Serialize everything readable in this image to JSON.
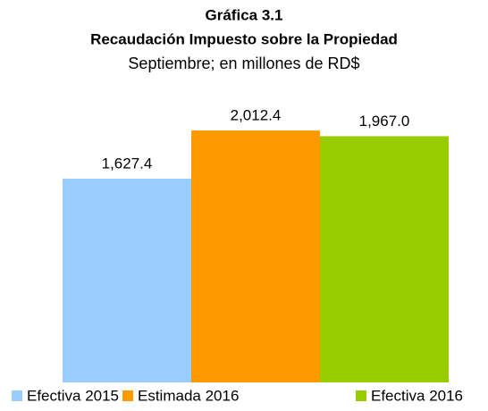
{
  "chart_data": {
    "type": "bar",
    "title": "Gráfica 3.1",
    "subtitle": "Recaudación Impuesto sobre la Propiedad",
    "unit_label": "Septiembre; en millones de RD$",
    "categories": [
      null
    ],
    "series": [
      {
        "name": "Efectiva 2015",
        "color": "#99ccff",
        "values": [
          1627.4
        ],
        "value_labels": [
          "1,627.4"
        ]
      },
      {
        "name": "Estimada 2016",
        "color": "#ff9900",
        "values": [
          2012.4
        ],
        "value_labels": [
          "2,012.4"
        ]
      },
      {
        "name": "Efectiva 2016",
        "color": "#99cc00",
        "values": [
          1967.0
        ],
        "value_labels": [
          "1,967.0"
        ]
      }
    ],
    "legend": "bottom"
  }
}
